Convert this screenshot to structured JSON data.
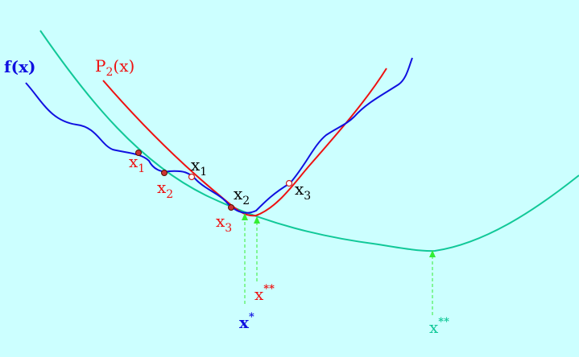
{
  "colors": {
    "background": "#ccffff",
    "f": "#1010e0",
    "p2": "#ee1111",
    "green_curve": "#11c898",
    "arrow": "#33ee33",
    "black_text": "#000000"
  },
  "labels": {
    "fx": "f(x)",
    "p2_main": "P",
    "p2_sub": "2",
    "p2_rest": "(x)",
    "x_main": "x",
    "sub1": "1",
    "sub2": "2",
    "sub3": "3",
    "star": "*",
    "dstar": "**"
  }
}
